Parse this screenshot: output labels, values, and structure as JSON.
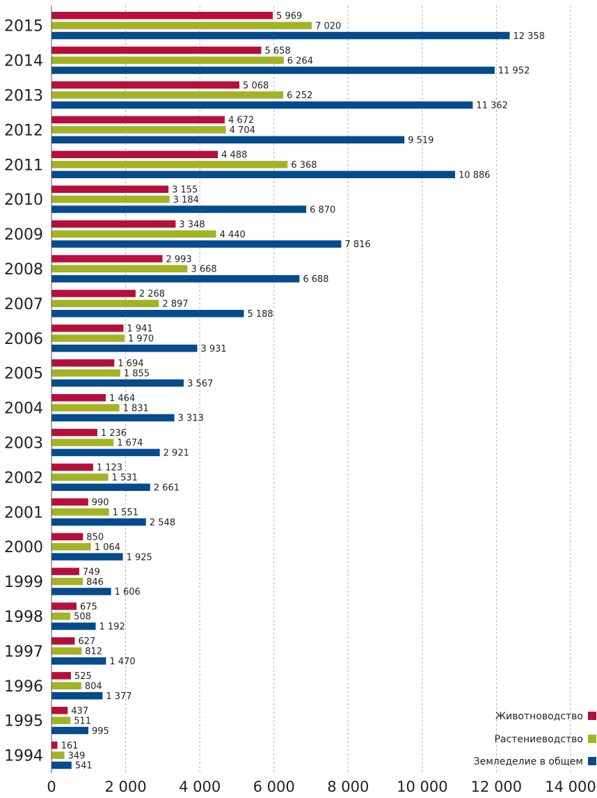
{
  "chart_data": {
    "type": "bar",
    "orientation": "horizontal",
    "categories": [
      "2015",
      "2014",
      "2013",
      "2012",
      "2011",
      "2010",
      "2009",
      "2008",
      "2007",
      "2006",
      "2005",
      "2004",
      "2003",
      "2002",
      "2001",
      "2000",
      "1999",
      "1998",
      "1997",
      "1996",
      "1995",
      "1994"
    ],
    "series": [
      {
        "name": "Животноводство",
        "color": "#b5103c",
        "values": [
          5969,
          5658,
          5068,
          4672,
          4488,
          3155,
          3348,
          2993,
          2268,
          1941,
          1694,
          1464,
          1236,
          1123,
          990,
          850,
          749,
          675,
          627,
          525,
          437,
          161
        ]
      },
      {
        "name": "Растениеводство",
        "color": "#a4b325",
        "values": [
          7020,
          6264,
          6252,
          4704,
          6368,
          3184,
          4440,
          3668,
          2897,
          1970,
          1855,
          1831,
          1674,
          1531,
          1551,
          1064,
          846,
          508,
          812,
          804,
          511,
          349
        ]
      },
      {
        "name": "Земледелие в общем",
        "color": "#064b8c",
        "values": [
          12358,
          11952,
          11362,
          9519,
          10886,
          6870,
          7816,
          6688,
          5188,
          3931,
          3567,
          3313,
          2921,
          2661,
          2548,
          1925,
          1606,
          1192,
          1470,
          1377,
          995,
          541
        ]
      }
    ],
    "value_labels": {
      "Животноводство": [
        "5 969",
        "5 658",
        "5 068",
        "4 672",
        "4 488",
        "3 155",
        "3 348",
        "2 993",
        "2 268",
        "1 941",
        "1 694",
        "1 464",
        "1 236",
        "1 123",
        "990",
        "850",
        "749",
        "675",
        "627",
        "525",
        "437",
        "161"
      ],
      "Растениеводство": [
        "7 020",
        "6 264",
        "6 252",
        "4 704",
        "6 368",
        "3 184",
        "4 440",
        "3 668",
        "2 897",
        "1 970",
        "1 855",
        "1 831",
        "1 674",
        "1 531",
        "1 551",
        "1 064",
        "846",
        "508",
        "812",
        "804",
        "511",
        "349"
      ],
      "Земледелие в общем": [
        "12 358",
        "11 952",
        "11 362",
        "9 519",
        "10 886",
        "6 870",
        "7 816",
        "6 688",
        "5 188",
        "3 931",
        "3 567",
        "3 313",
        "2 921",
        "2 661",
        "2 548",
        "1 925",
        "1 606",
        "1 192",
        "1 470",
        "1 377",
        "995",
        "541"
      ]
    },
    "xlim": [
      0,
      14000
    ],
    "xticks": [
      0,
      2000,
      4000,
      6000,
      8000,
      10000,
      12000,
      14000
    ],
    "xtick_labels": [
      "0",
      "2 000",
      "4 000",
      "6 000",
      "8 000",
      "10 000",
      "12 000",
      "14 000"
    ],
    "grid": "vertical dashed",
    "legend": {
      "placement": "bottom-right",
      "entries": [
        "Животноводство",
        "Растениеводство",
        "Земледелие в общем"
      ]
    }
  }
}
